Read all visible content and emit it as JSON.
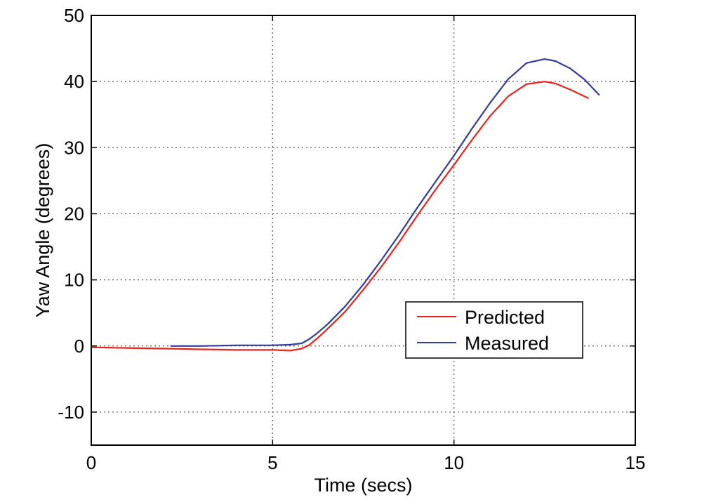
{
  "chart_data": {
    "type": "line",
    "title": "",
    "xlabel": "Time (secs)",
    "ylabel": "Yaw Angle (degrees)",
    "xlim": [
      0,
      15
    ],
    "ylim": [
      -15,
      50
    ],
    "xticks": [
      0,
      5,
      10,
      15
    ],
    "yticks": [
      -10,
      0,
      10,
      20,
      30,
      40,
      50
    ],
    "xtick_labels": [
      "0",
      "5",
      "10",
      "15"
    ],
    "ytick_labels": [
      "-10",
      "0",
      "10",
      "20",
      "30",
      "40",
      "50"
    ],
    "grid": true,
    "legend_position": "lower-right",
    "series": [
      {
        "name": "Predicted",
        "color": "#e8231f",
        "x": [
          0,
          1,
          2,
          3,
          4,
          5,
          5.5,
          5.8,
          6.0,
          6.2,
          6.5,
          7.0,
          7.5,
          8.0,
          8.5,
          9.0,
          9.5,
          10.0,
          10.5,
          11.0,
          11.5,
          12.0,
          12.5,
          12.8,
          13.2,
          13.7
        ],
        "y": [
          -0.2,
          -0.3,
          -0.4,
          -0.5,
          -0.6,
          -0.6,
          -0.7,
          -0.4,
          0.1,
          1.0,
          2.5,
          5.2,
          8.5,
          12.0,
          15.8,
          19.8,
          23.7,
          27.4,
          31.2,
          34.8,
          37.8,
          39.6,
          40.0,
          39.7,
          38.8,
          37.5
        ]
      },
      {
        "name": "Measured",
        "color": "#2d3f9a",
        "x": [
          2.2,
          3,
          4,
          5,
          5.5,
          5.8,
          6.0,
          6.2,
          6.5,
          7.0,
          7.5,
          8.0,
          8.5,
          9.0,
          9.5,
          10.0,
          10.5,
          11.0,
          11.5,
          12.0,
          12.5,
          12.8,
          13.2,
          13.6,
          14.0
        ],
        "y": [
          0.0,
          0.0,
          0.1,
          0.1,
          0.2,
          0.4,
          1.0,
          1.8,
          3.2,
          6.0,
          9.3,
          13.0,
          16.9,
          21.0,
          24.9,
          28.8,
          32.9,
          36.8,
          40.4,
          42.8,
          43.4,
          43.1,
          42.0,
          40.3,
          38.0
        ]
      }
    ]
  }
}
